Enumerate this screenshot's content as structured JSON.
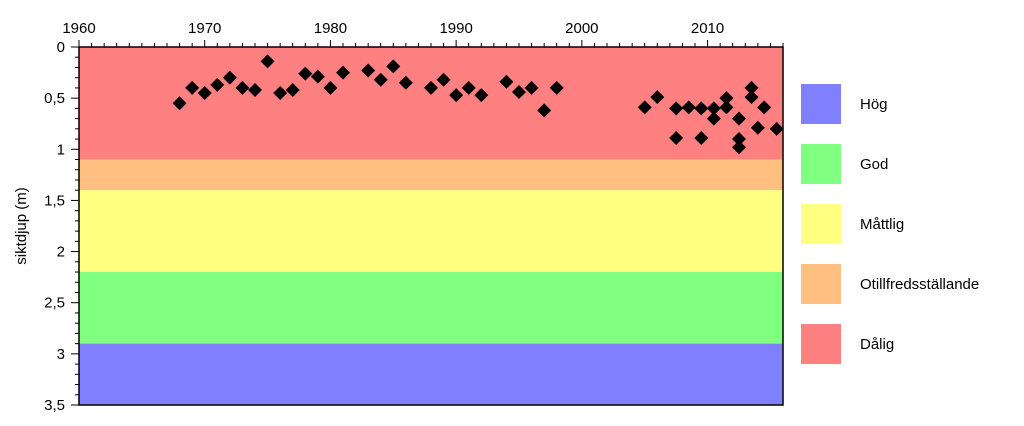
{
  "chart_data": {
    "type": "scatter",
    "title": "",
    "xlabel": "",
    "ylabel": "siktdjup (m)",
    "xlim": [
      1960,
      2016
    ],
    "ylim": [
      0,
      3.5
    ],
    "y_inverted": true,
    "x_axis_position": "top",
    "x_ticks": [
      1960,
      1970,
      1980,
      1990,
      2000,
      2010
    ],
    "x_tick_labels": [
      "1960",
      "1970",
      "1980",
      "1990",
      "2000",
      "2010"
    ],
    "y_ticks": [
      0,
      0.5,
      1,
      1.5,
      2,
      2.5,
      3,
      3.5
    ],
    "y_tick_labels": [
      "0",
      "0,5",
      "1",
      "1,5",
      "2",
      "2,5",
      "3",
      "3,5"
    ],
    "grid": false,
    "marker": "diamond",
    "marker_color": "#000000",
    "bands": [
      {
        "label": "Dålig",
        "from": 0,
        "to": 1.1,
        "color": "#ff8080"
      },
      {
        "label": "Otillfredsställande",
        "from": 1.1,
        "to": 1.4,
        "color": "#ffbf80"
      },
      {
        "label": "Måttlig",
        "from": 1.4,
        "to": 2.2,
        "color": "#ffff80"
      },
      {
        "label": "God",
        "from": 2.2,
        "to": 2.9,
        "color": "#80ff80"
      },
      {
        "label": "Hög",
        "from": 2.9,
        "to": 3.5,
        "color": "#8080ff"
      }
    ],
    "legend_position": "right",
    "legend": [
      {
        "label": "Hög",
        "color": "#8080ff"
      },
      {
        "label": "God",
        "color": "#80ff80"
      },
      {
        "label": "Måttlig",
        "color": "#ffff80"
      },
      {
        "label": "Otillfredsställande",
        "color": "#ffbf80"
      },
      {
        "label": "Dålig",
        "color": "#ff8080"
      }
    ],
    "series": [
      {
        "x": [
          1968,
          1969,
          1970,
          1971,
          1972,
          1973,
          1974,
          1975,
          1976,
          1977,
          1978,
          1979,
          1980,
          1981,
          1983,
          1984,
          1985,
          1986,
          1988,
          1989,
          1990,
          1991,
          1992,
          1994,
          1995,
          1996,
          1997,
          1998,
          2005,
          2006,
          2007.5,
          2007.5,
          2008.5,
          2009.5,
          2009.5,
          2010.5,
          2010.5,
          2011.5,
          2011.5,
          2012.5,
          2012.5,
          2012.5,
          2013.5,
          2013.5,
          2014,
          2014.5,
          2015.5
        ],
        "y": [
          0.55,
          0.4,
          0.45,
          0.37,
          0.3,
          0.4,
          0.42,
          0.14,
          0.45,
          0.42,
          0.26,
          0.29,
          0.4,
          0.25,
          0.23,
          0.32,
          0.19,
          0.35,
          0.4,
          0.32,
          0.47,
          0.4,
          0.47,
          0.34,
          0.44,
          0.4,
          0.62,
          0.4,
          0.59,
          0.49,
          0.6,
          0.89,
          0.59,
          0.6,
          0.89,
          0.6,
          0.7,
          0.5,
          0.59,
          0.7,
          0.9,
          0.98,
          0.4,
          0.49,
          0.79,
          0.59,
          0.8
        ]
      }
    ]
  }
}
